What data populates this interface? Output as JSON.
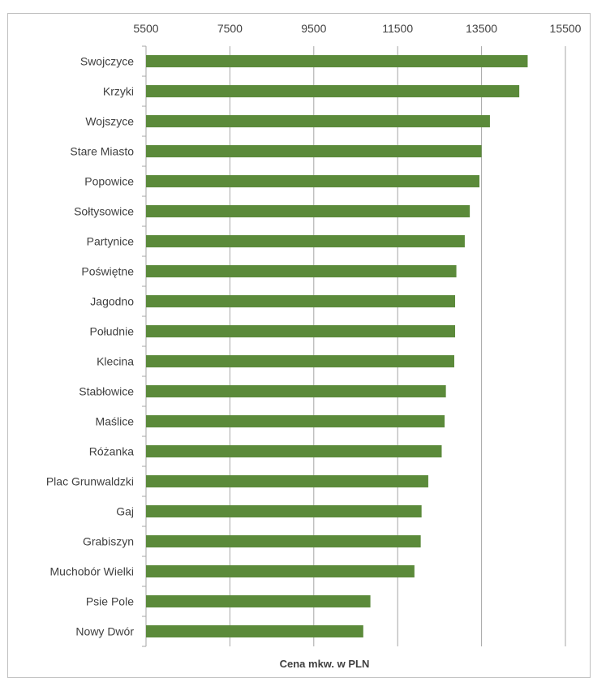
{
  "chart_data": {
    "type": "bar",
    "orientation": "horizontal",
    "categories": [
      "Swojczyce",
      "Krzyki",
      "Wojszyce",
      "Stare Miasto",
      "Popowice",
      "Sołtysowice",
      "Partynice",
      "Poświętne",
      "Jagodno",
      "Południe",
      "Klecina",
      "Stabłowice",
      "Maślice",
      "Różanka",
      "Plac Grunwaldzki",
      "Gaj",
      "Grabiszyn",
      "Muchobór Wielki",
      "Psie Pole",
      "Nowy Dwór"
    ],
    "values": [
      14600,
      14400,
      13700,
      13500,
      13450,
      13220,
      13100,
      12900,
      12870,
      12870,
      12850,
      12650,
      12620,
      12550,
      12230,
      12070,
      12050,
      11900,
      10850,
      10680
    ],
    "xlabel": "Cena mkw. w PLN",
    "xlim": [
      5500,
      15500
    ],
    "xticks": [
      5500,
      7500,
      9500,
      11500,
      13500,
      15500
    ],
    "xtick_position": "top",
    "grid": true,
    "bar_color": "#5b8a3a",
    "grid_color": "#a6a6a6"
  }
}
